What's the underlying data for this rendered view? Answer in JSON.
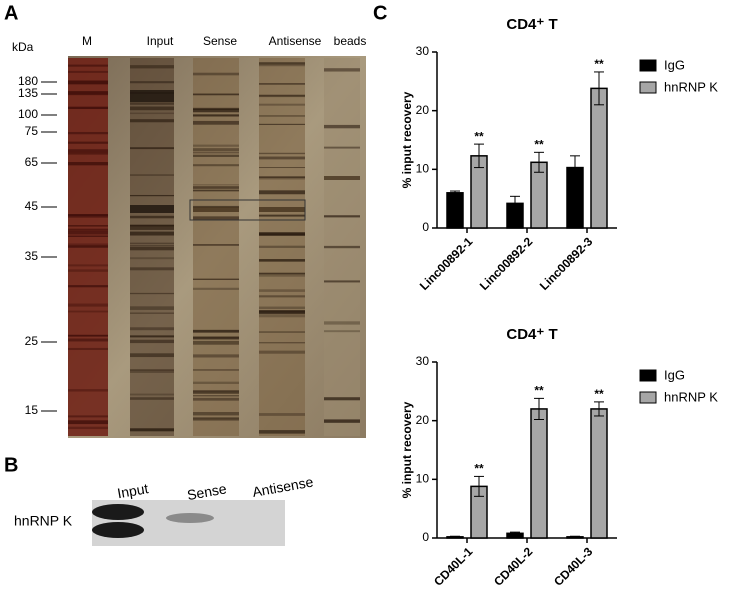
{
  "panel_labels": [
    "A",
    "B",
    "C"
  ],
  "gel_a": {
    "unit": "kDa",
    "lanes": [
      "M",
      "Input",
      "Sense",
      "Antisense",
      "beads"
    ],
    "markers": [
      "180",
      "135",
      "100",
      "75",
      "65",
      "45",
      "35",
      "25",
      "15"
    ]
  },
  "gel_b": {
    "protein": "hnRNP K",
    "lanes": [
      "Input",
      "Sense",
      "Antisense"
    ]
  },
  "chart_data": [
    {
      "type": "bar",
      "title": "CD4⁺ T",
      "ylabel": "% input recovery",
      "categories": [
        "Linc00892-1",
        "Linc00892-2",
        "Linc00892-3"
      ],
      "series": [
        {
          "name": "IgG",
          "color": "#000000",
          "values": [
            6,
            4.2,
            10.3
          ],
          "errors": [
            0.3,
            1.2,
            2
          ]
        },
        {
          "name": "hnRNP K",
          "color": "#a6a6a6",
          "values": [
            12.3,
            11.2,
            23.8
          ],
          "errors": [
            2,
            1.7,
            2.8
          ],
          "significance": [
            "**",
            "**",
            "**"
          ]
        }
      ],
      "ylim": [
        0,
        30
      ],
      "yticks": [
        0,
        10,
        20,
        30
      ],
      "legend": "right"
    },
    {
      "type": "bar",
      "title": "CD4⁺ T",
      "ylabel": "% input recovery",
      "categories": [
        "CD40L-1",
        "CD40L-2",
        "CD40L-3"
      ],
      "series": [
        {
          "name": "IgG",
          "color": "#000000",
          "values": [
            0.2,
            0.8,
            0.2
          ],
          "errors": [
            0.1,
            0.2,
            0.1
          ]
        },
        {
          "name": "hnRNP K",
          "color": "#a6a6a6",
          "values": [
            8.8,
            22,
            22
          ],
          "errors": [
            1.7,
            1.8,
            1.2
          ],
          "significance": [
            "**",
            "**",
            "**"
          ]
        }
      ],
      "ylim": [
        0,
        30
      ],
      "yticks": [
        0,
        10,
        20,
        30
      ],
      "legend": "right"
    }
  ]
}
